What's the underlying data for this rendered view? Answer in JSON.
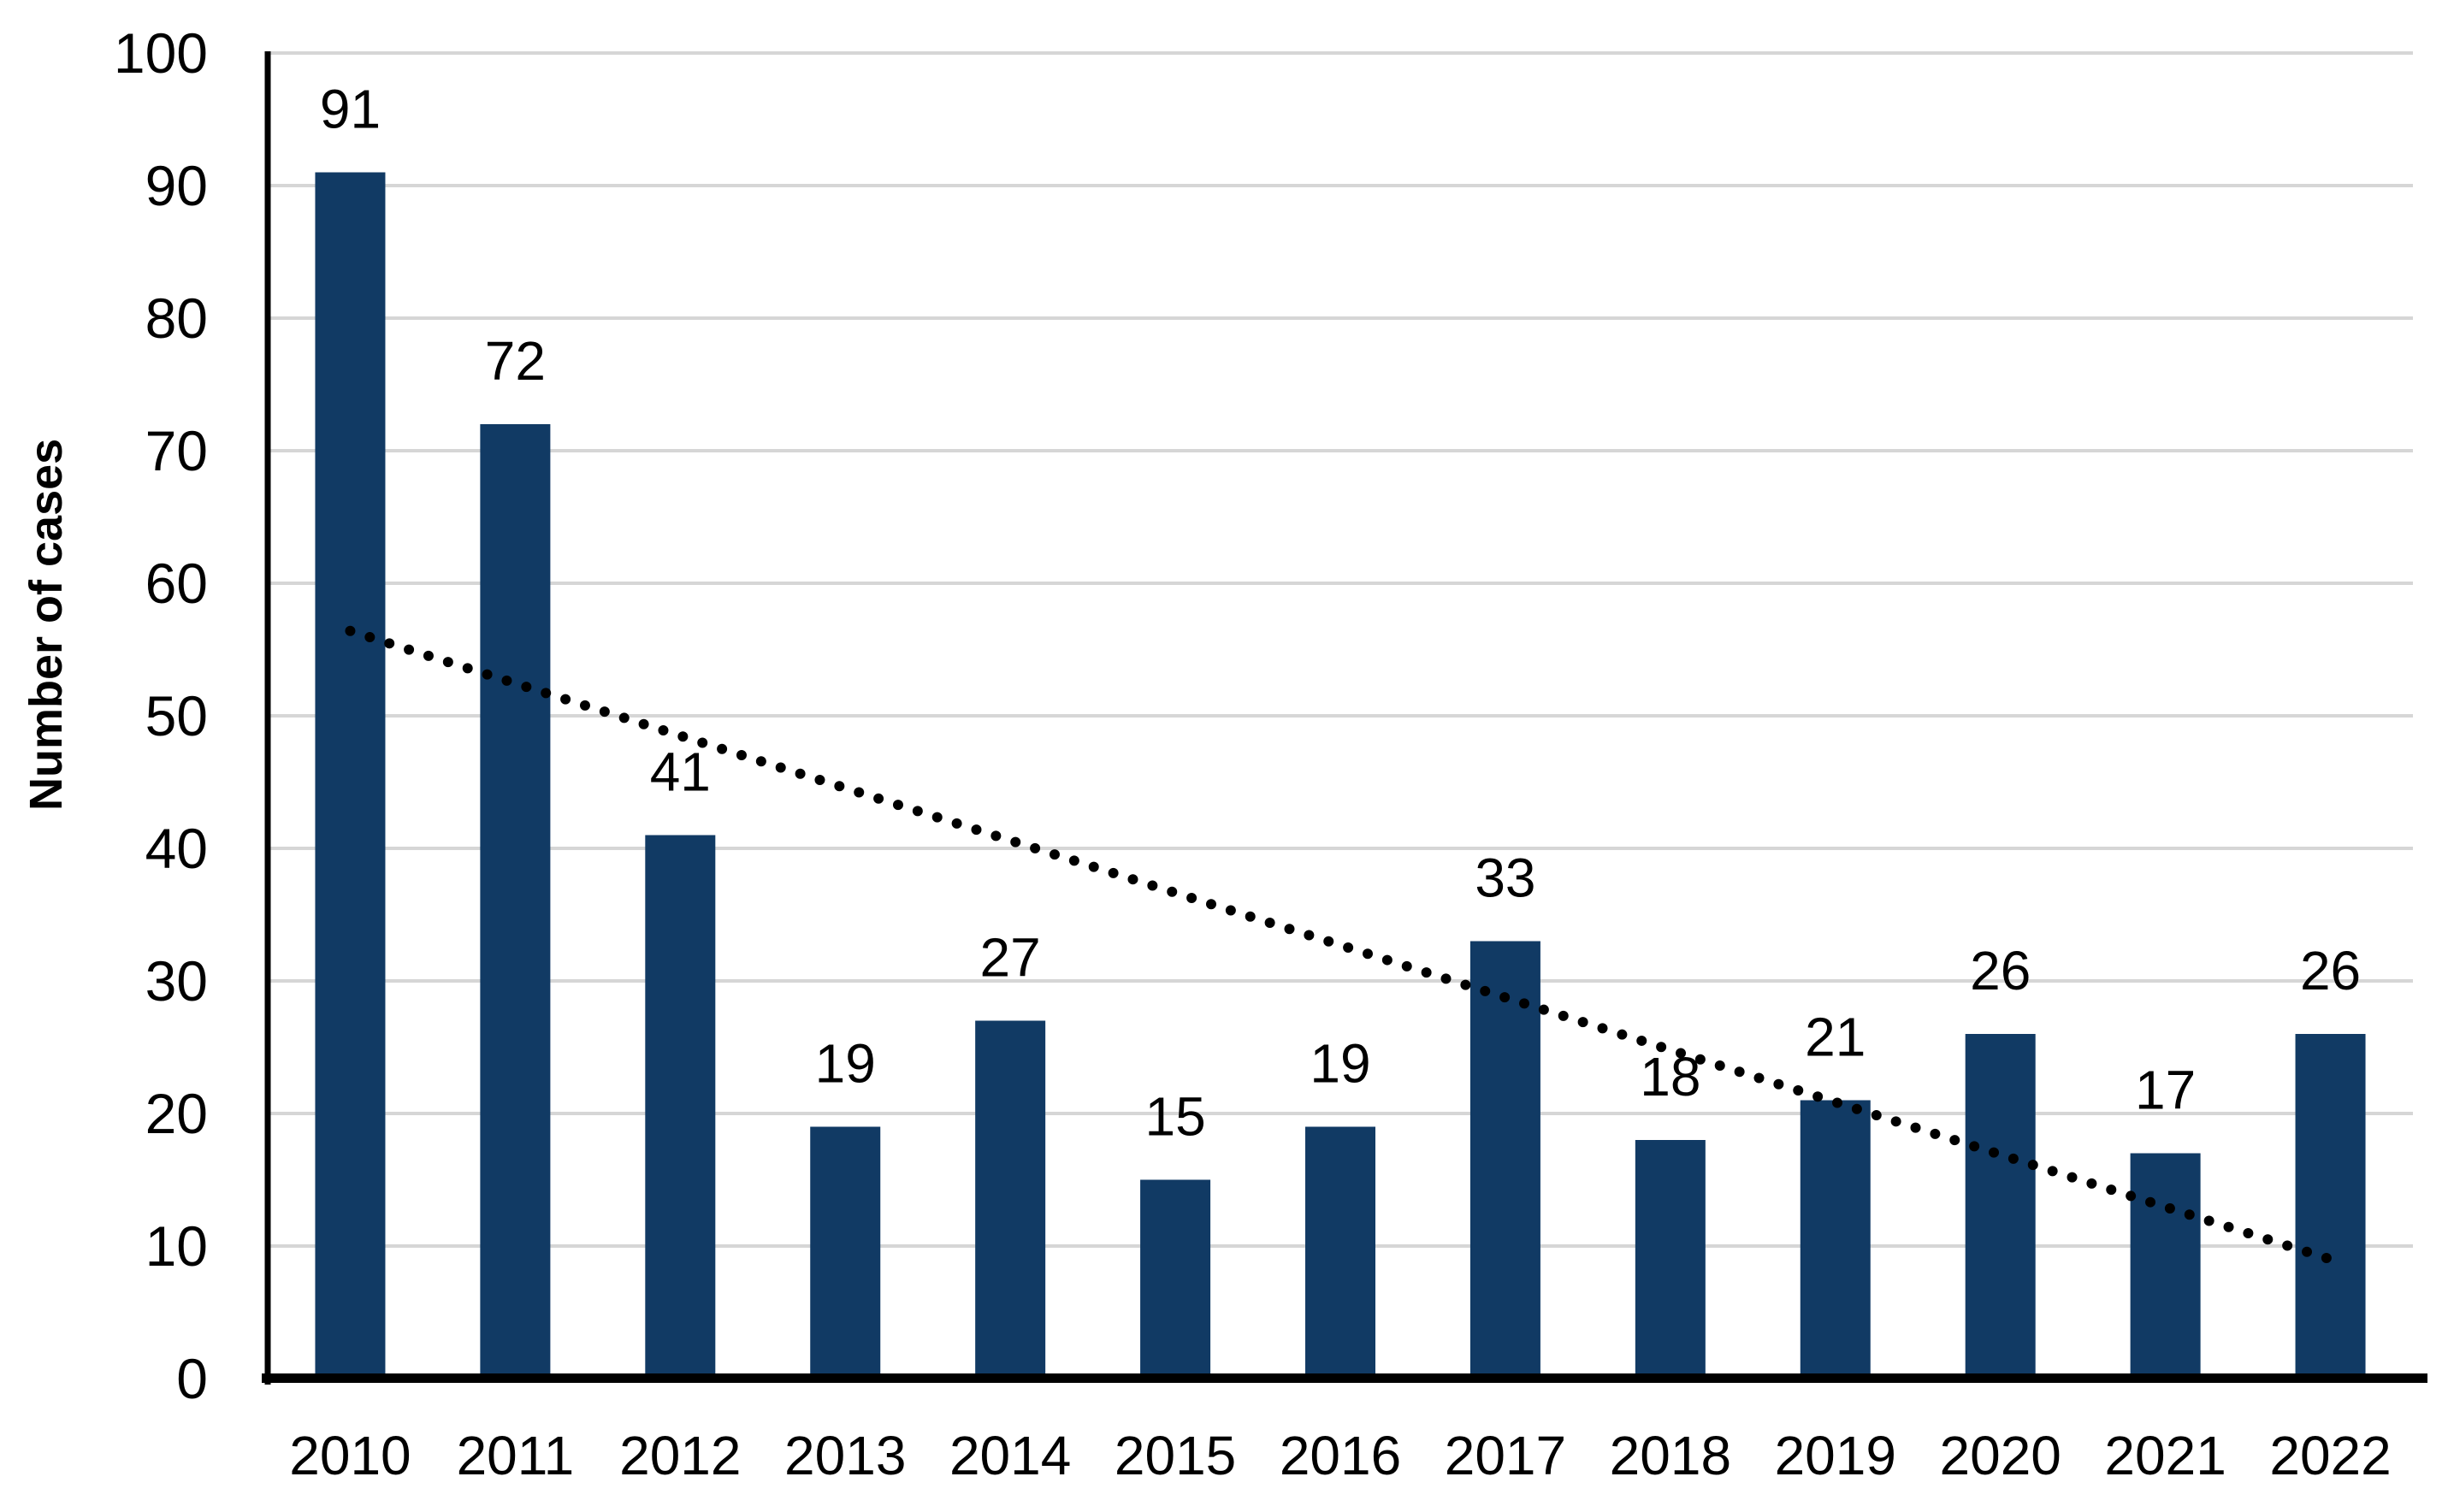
{
  "chart_data": {
    "type": "bar",
    "ylabel": "Number of cases",
    "xlabel": "",
    "categories": [
      "2010",
      "2011",
      "2012",
      "2013",
      "2014",
      "2015",
      "2016",
      "2017",
      "2018",
      "2019",
      "2020",
      "2021",
      "2022"
    ],
    "series": [
      {
        "name": "Number of cases",
        "values": [
          91,
          72,
          41,
          19,
          27,
          15,
          19,
          33,
          18,
          21,
          26,
          17,
          26
        ]
      }
    ],
    "data_labels_shown": true,
    "ylim": [
      0,
      100
    ],
    "yticks": [
      0,
      10,
      20,
      30,
      40,
      50,
      60,
      70,
      80,
      90,
      100
    ],
    "grid": true,
    "legend": "none",
    "trendline": {
      "type": "linear",
      "style": "dotted",
      "color": "#000000",
      "start_value": 56.4,
      "end_value": 9.0
    },
    "colors": {
      "bar": "#113A64",
      "gridline": "#D6D6D6",
      "axis": "#000000",
      "text": "#000000"
    }
  }
}
